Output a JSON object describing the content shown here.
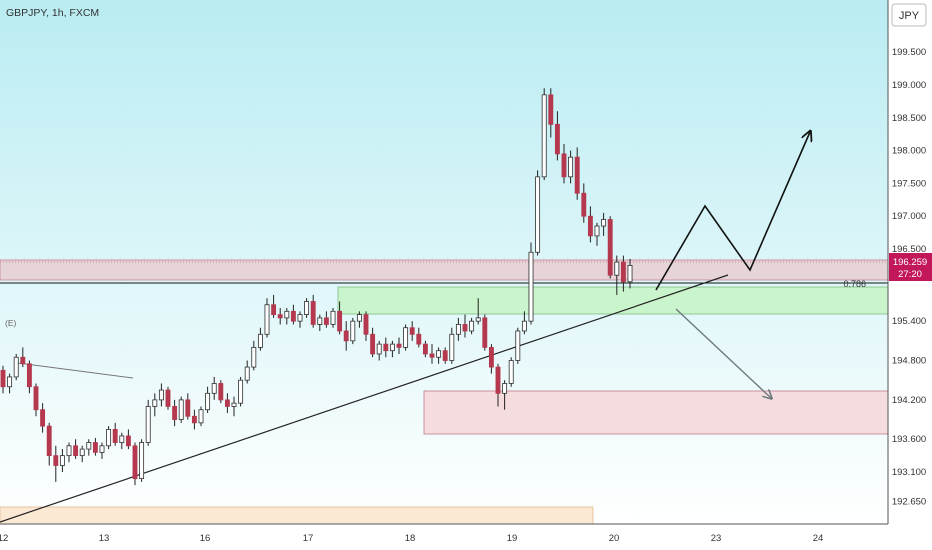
{
  "chart_data": {
    "type": "candlestick",
    "title": "GBPJPY, 1h, FXCM",
    "currency_label": "JPY",
    "marker_label": "(E)",
    "ylim": [
      192.3,
      200.2
    ],
    "y_ticks": [
      "199.500",
      "199.000",
      "198.500",
      "198.000",
      "197.500",
      "197.000",
      "196.500",
      "195.400",
      "194.800",
      "194.200",
      "193.600",
      "193.100",
      "192.650"
    ],
    "x_ticks": [
      "12",
      "13",
      "16",
      "17",
      "18",
      "19",
      "20",
      "23",
      "24"
    ],
    "last_price": "196.259",
    "countdown": "27:20",
    "fib_label": "0.786",
    "fib_value": 195.78,
    "candles": [
      [
        194.65,
        194.72,
        194.3,
        194.4
      ],
      [
        194.4,
        194.6,
        194.3,
        194.55
      ],
      [
        194.55,
        194.9,
        194.5,
        194.85
      ],
      [
        194.85,
        195.0,
        194.7,
        194.75
      ],
      [
        194.75,
        194.8,
        194.3,
        194.4
      ],
      [
        194.4,
        194.45,
        193.95,
        194.05
      ],
      [
        194.05,
        194.15,
        193.7,
        193.8
      ],
      [
        193.8,
        193.85,
        193.2,
        193.35
      ],
      [
        193.35,
        193.5,
        192.95,
        193.2
      ],
      [
        193.2,
        193.45,
        193.1,
        193.35
      ],
      [
        193.35,
        193.55,
        193.25,
        193.5
      ],
      [
        193.5,
        193.6,
        193.3,
        193.35
      ],
      [
        193.35,
        193.5,
        193.25,
        193.45
      ],
      [
        193.45,
        193.6,
        193.35,
        193.55
      ],
      [
        193.55,
        193.62,
        193.35,
        193.4
      ],
      [
        193.4,
        193.55,
        193.3,
        193.5
      ],
      [
        193.5,
        193.8,
        193.45,
        193.75
      ],
      [
        193.75,
        193.85,
        193.5,
        193.55
      ],
      [
        193.55,
        193.7,
        193.45,
        193.65
      ],
      [
        193.65,
        193.75,
        193.45,
        193.5
      ],
      [
        193.5,
        193.55,
        192.9,
        193.0
      ],
      [
        193.0,
        193.6,
        192.95,
        193.55
      ],
      [
        193.55,
        194.2,
        193.5,
        194.1
      ],
      [
        194.1,
        194.3,
        193.95,
        194.2
      ],
      [
        194.2,
        194.45,
        194.1,
        194.35
      ],
      [
        194.35,
        194.4,
        194.05,
        194.1
      ],
      [
        194.1,
        194.2,
        193.8,
        193.9
      ],
      [
        193.9,
        194.25,
        193.85,
        194.2
      ],
      [
        194.2,
        194.3,
        193.9,
        193.95
      ],
      [
        193.95,
        194.05,
        193.75,
        193.85
      ],
      [
        193.85,
        194.1,
        193.8,
        194.05
      ],
      [
        194.05,
        194.4,
        194.0,
        194.3
      ],
      [
        194.3,
        194.55,
        194.2,
        194.45
      ],
      [
        194.45,
        194.5,
        194.15,
        194.2
      ],
      [
        194.2,
        194.3,
        194.0,
        194.1
      ],
      [
        194.1,
        194.25,
        193.95,
        194.15
      ],
      [
        194.15,
        194.55,
        194.1,
        194.5
      ],
      [
        194.5,
        194.8,
        194.45,
        194.7
      ],
      [
        194.7,
        195.1,
        194.65,
        195.0
      ],
      [
        195.0,
        195.3,
        194.95,
        195.2
      ],
      [
        195.2,
        195.75,
        195.15,
        195.65
      ],
      [
        195.65,
        195.8,
        195.45,
        195.5
      ],
      [
        195.5,
        195.6,
        195.35,
        195.45
      ],
      [
        195.45,
        195.6,
        195.35,
        195.55
      ],
      [
        195.55,
        195.65,
        195.35,
        195.4
      ],
      [
        195.4,
        195.55,
        195.3,
        195.5
      ],
      [
        195.5,
        195.75,
        195.45,
        195.7
      ],
      [
        195.7,
        195.8,
        195.3,
        195.35
      ],
      [
        195.35,
        195.5,
        195.25,
        195.45
      ],
      [
        195.45,
        195.55,
        195.3,
        195.35
      ],
      [
        195.35,
        195.6,
        195.3,
        195.55
      ],
      [
        195.55,
        195.7,
        195.2,
        195.25
      ],
      [
        195.25,
        195.4,
        194.95,
        195.1
      ],
      [
        195.1,
        195.45,
        195.05,
        195.4
      ],
      [
        195.4,
        195.55,
        195.3,
        195.5
      ],
      [
        195.5,
        195.55,
        195.1,
        195.2
      ],
      [
        195.2,
        195.3,
        194.85,
        194.9
      ],
      [
        194.9,
        195.1,
        194.8,
        195.05
      ],
      [
        195.05,
        195.15,
        194.85,
        194.95
      ],
      [
        194.95,
        195.1,
        194.85,
        195.05
      ],
      [
        195.05,
        195.15,
        194.9,
        195.0
      ],
      [
        195.0,
        195.35,
        194.95,
        195.3
      ],
      [
        195.3,
        195.4,
        195.1,
        195.2
      ],
      [
        195.2,
        195.3,
        195.0,
        195.05
      ],
      [
        195.05,
        195.1,
        194.85,
        194.9
      ],
      [
        194.9,
        195.05,
        194.75,
        194.85
      ],
      [
        194.85,
        195.0,
        194.75,
        194.95
      ],
      [
        194.95,
        195.0,
        194.75,
        194.8
      ],
      [
        194.8,
        195.3,
        194.75,
        195.2
      ],
      [
        195.2,
        195.45,
        195.1,
        195.35
      ],
      [
        195.35,
        195.5,
        195.15,
        195.25
      ],
      [
        195.25,
        195.45,
        195.2,
        195.4
      ],
      [
        195.4,
        195.75,
        195.35,
        195.45
      ],
      [
        195.45,
        195.5,
        194.95,
        195.0
      ],
      [
        195.0,
        195.05,
        194.6,
        194.7
      ],
      [
        194.7,
        194.75,
        194.1,
        194.3
      ],
      [
        194.3,
        194.5,
        194.05,
        194.45
      ],
      [
        194.45,
        194.85,
        194.4,
        194.8
      ],
      [
        194.8,
        195.3,
        194.75,
        195.25
      ],
      [
        195.25,
        195.55,
        195.2,
        195.4
      ],
      [
        195.4,
        196.6,
        195.35,
        196.45
      ],
      [
        196.45,
        197.7,
        196.4,
        197.6
      ],
      [
        197.6,
        198.95,
        197.55,
        198.85
      ],
      [
        198.85,
        198.95,
        198.2,
        198.4
      ],
      [
        198.4,
        198.6,
        197.85,
        197.95
      ],
      [
        197.95,
        198.1,
        197.5,
        197.6
      ],
      [
        197.6,
        198.0,
        197.5,
        197.9
      ],
      [
        197.9,
        198.05,
        197.25,
        197.35
      ],
      [
        197.35,
        197.5,
        196.9,
        197.0
      ],
      [
        197.0,
        197.15,
        196.6,
        196.7
      ],
      [
        196.7,
        196.9,
        196.55,
        196.85
      ],
      [
        196.85,
        197.05,
        196.7,
        196.95
      ],
      [
        196.95,
        197.0,
        196.05,
        196.1
      ],
      [
        196.1,
        196.4,
        195.8,
        196.3
      ],
      [
        196.3,
        196.4,
        195.85,
        196.0
      ],
      [
        196.0,
        196.35,
        195.9,
        196.25
      ]
    ]
  }
}
